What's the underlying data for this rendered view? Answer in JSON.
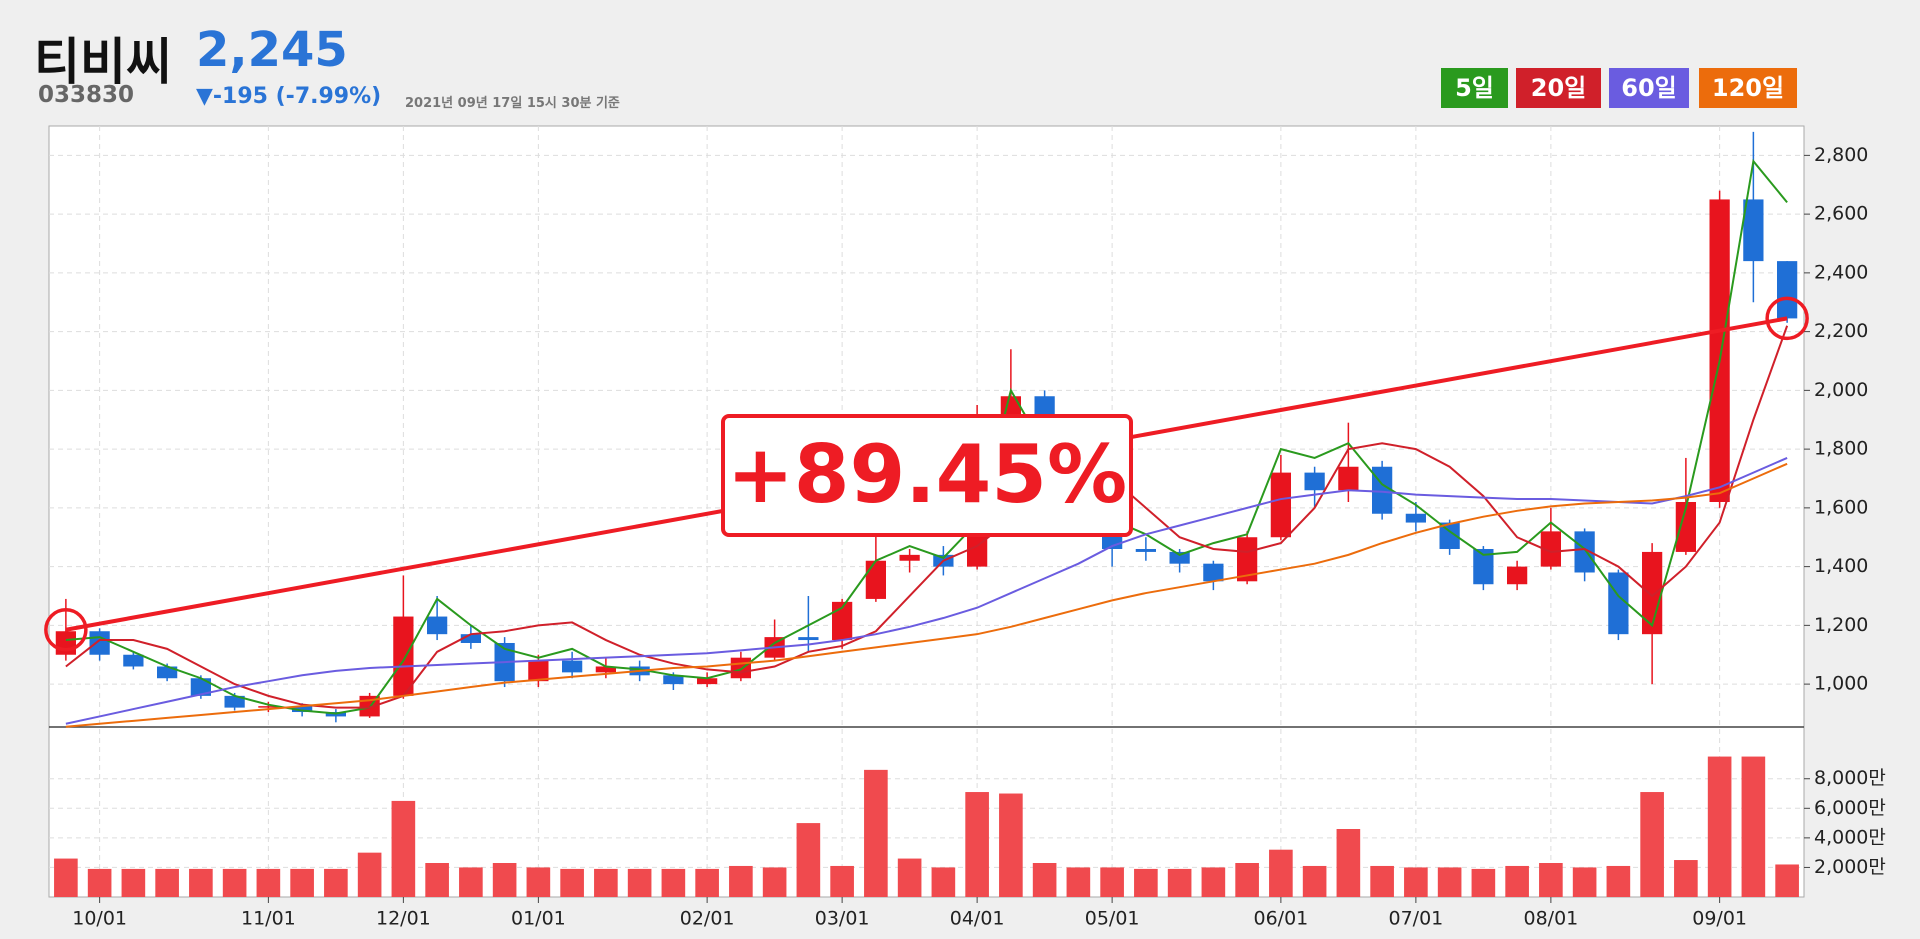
{
  "header": {
    "name": "티비씨",
    "price": "2,245",
    "code": "033830",
    "change": "▼-195 (-7.99%)",
    "timestamp": "2021년 09년 17일 15시 30분 기준"
  },
  "chart_data": {
    "type": "candlestick",
    "up_color": "#e8141e",
    "down_color": "#1f6fd6",
    "categories": [
      null,
      "10/01",
      null,
      null,
      null,
      null,
      "11/01",
      null,
      null,
      null,
      "12/01",
      null,
      null,
      null,
      "01/01",
      null,
      null,
      null,
      null,
      "02/01",
      null,
      null,
      null,
      "03/01",
      null,
      null,
      null,
      "04/01",
      null,
      null,
      null,
      "05/01",
      null,
      null,
      null,
      null,
      "06/01",
      null,
      null,
      null,
      "07/01",
      null,
      null,
      null,
      "08/01",
      null,
      null,
      null,
      null,
      "09/01",
      null,
      null
    ],
    "open": [
      1100,
      1180,
      1100,
      1060,
      1020,
      960,
      920,
      925,
      905,
      890,
      960,
      1230,
      1170,
      1140,
      1010,
      1080,
      1040,
      1060,
      1030,
      1000,
      1020,
      1090,
      1160,
      1150,
      1290,
      1420,
      1440,
      1400,
      1560,
      1980,
      1720,
      1600,
      1460,
      1450,
      1410,
      1350,
      1500,
      1720,
      1660,
      1740,
      1580,
      1550,
      1460,
      1340,
      1400,
      1520,
      1380,
      1170,
      1450,
      1620,
      2650,
      2440
    ],
    "high": [
      1290,
      1190,
      1110,
      1070,
      1030,
      970,
      940,
      935,
      915,
      970,
      1370,
      1300,
      1200,
      1160,
      1100,
      1110,
      1090,
      1080,
      1040,
      1040,
      1110,
      1220,
      1300,
      1290,
      1620,
      1460,
      1470,
      1950,
      2140,
      2000,
      1740,
      1620,
      1500,
      1460,
      1420,
      1520,
      1780,
      1740,
      1890,
      1760,
      1620,
      1560,
      1470,
      1420,
      1600,
      1530,
      1390,
      1480,
      1770,
      2680,
      2880,
      2440
    ],
    "low": [
      1080,
      1080,
      1050,
      1010,
      950,
      910,
      905,
      890,
      870,
      885,
      950,
      1150,
      1120,
      990,
      990,
      1020,
      1020,
      1010,
      980,
      990,
      1010,
      1080,
      1110,
      1120,
      1280,
      1380,
      1370,
      1390,
      1540,
      1700,
      1580,
      1400,
      1420,
      1380,
      1320,
      1340,
      1490,
      1600,
      1620,
      1560,
      1520,
      1440,
      1320,
      1320,
      1390,
      1350,
      1150,
      1000,
      1440,
      1600,
      2300,
      2230
    ],
    "close": [
      1180,
      1100,
      1060,
      1020,
      960,
      920,
      925,
      905,
      890,
      960,
      1230,
      1170,
      1140,
      1010,
      1080,
      1040,
      1060,
      1030,
      1000,
      1020,
      1090,
      1160,
      1150,
      1280,
      1420,
      1440,
      1400,
      1560,
      1980,
      1720,
      1600,
      1460,
      1450,
      1410,
      1350,
      1500,
      1720,
      1660,
      1740,
      1580,
      1550,
      1460,
      1340,
      1400,
      1520,
      1380,
      1170,
      1450,
      1620,
      2650,
      2440,
      2245
    ],
    "series": [
      {
        "name": "5일",
        "color": "#2a9a1e",
        "values": [
          1150,
          1160,
          1110,
          1060,
          1020,
          960,
          930,
          910,
          900,
          920,
          1080,
          1290,
          1200,
          1120,
          1090,
          1120,
          1060,
          1050,
          1030,
          1020,
          1050,
          1140,
          1200,
          1260,
          1420,
          1470,
          1430,
          1550,
          2000,
          1800,
          1660,
          1560,
          1510,
          1440,
          1480,
          1510,
          1800,
          1770,
          1820,
          1680,
          1610,
          1520,
          1440,
          1450,
          1550,
          1460,
          1300,
          1200,
          1600,
          2100,
          2780,
          2640
        ]
      },
      {
        "name": "20일",
        "color": "#d0202a",
        "values": [
          1060,
          1150,
          1150,
          1120,
          1060,
          1000,
          960,
          930,
          920,
          920,
          960,
          1110,
          1170,
          1180,
          1200,
          1210,
          1150,
          1100,
          1070,
          1050,
          1040,
          1060,
          1110,
          1130,
          1180,
          1300,
          1420,
          1470,
          1560,
          1800,
          1800,
          1700,
          1600,
          1500,
          1460,
          1450,
          1480,
          1600,
          1800,
          1820,
          1800,
          1740,
          1640,
          1500,
          1450,
          1460,
          1400,
          1300,
          1400,
          1550,
          1900,
          2220
        ]
      },
      {
        "name": "60일",
        "color": "#6a5ce0",
        "values": [
          865,
          890,
          915,
          940,
          965,
          990,
          1010,
          1030,
          1045,
          1055,
          1060,
          1065,
          1070,
          1075,
          1080,
          1085,
          1090,
          1095,
          1100,
          1105,
          1115,
          1125,
          1135,
          1150,
          1170,
          1195,
          1225,
          1260,
          1310,
          1360,
          1410,
          1470,
          1510,
          1540,
          1570,
          1600,
          1630,
          1645,
          1660,
          1655,
          1645,
          1640,
          1635,
          1630,
          1630,
          1625,
          1620,
          1615,
          1640,
          1670,
          1720,
          1770
        ]
      },
      {
        "name": "120일",
        "color": "#ec6c0c",
        "values": [
          855,
          865,
          875,
          885,
          895,
          905,
          915,
          925,
          935,
          945,
          960,
          975,
          990,
          1005,
          1015,
          1025,
          1035,
          1045,
          1055,
          1060,
          1070,
          1080,
          1095,
          1110,
          1125,
          1140,
          1155,
          1170,
          1195,
          1225,
          1255,
          1285,
          1310,
          1330,
          1350,
          1370,
          1390,
          1410,
          1440,
          1480,
          1515,
          1545,
          1570,
          1590,
          1605,
          1615,
          1620,
          1625,
          1635,
          1650,
          1700,
          1750
        ]
      }
    ],
    "ylim": [
      854,
      2900
    ],
    "yticks": [
      {
        "value": 1000,
        "label": "1,000"
      },
      {
        "value": 1200,
        "label": "1,200"
      },
      {
        "value": 1400,
        "label": "1,400"
      },
      {
        "value": 1600,
        "label": "1,600"
      },
      {
        "value": 1800,
        "label": "1,800"
      },
      {
        "value": 2000,
        "label": "2,000"
      },
      {
        "value": 2200,
        "label": "2,200"
      },
      {
        "value": 2400,
        "label": "2,400"
      },
      {
        "value": 2600,
        "label": "2,600"
      },
      {
        "value": 2800,
        "label": "2,800"
      }
    ],
    "grid": true,
    "volume": {
      "color": "#f04a4e",
      "ylim": [
        0,
        11500
      ],
      "values": [
        2600,
        1900,
        1900,
        1900,
        1900,
        1900,
        1900,
        1900,
        1900,
        3000,
        6500,
        2300,
        2000,
        2300,
        2000,
        1900,
        1900,
        1900,
        1900,
        1900,
        2100,
        2000,
        5000,
        2100,
        8600,
        2600,
        2000,
        7100,
        7000,
        2300,
        2000,
        2000,
        1900,
        1900,
        2000,
        2300,
        3200,
        2100,
        4600,
        2100,
        2000,
        2000,
        1900,
        2100,
        2300,
        2000,
        2100,
        7100,
        2500,
        9500,
        9500,
        2200
      ],
      "yticks": [
        {
          "value": 2000,
          "label": "2,000만"
        },
        {
          "value": 4000,
          "label": "4,000만"
        },
        {
          "value": 6000,
          "label": "6,000만"
        },
        {
          "value": 8000,
          "label": "8,000만"
        }
      ]
    },
    "annotation": {
      "text": "+89.45%",
      "start": 1185,
      "end": 2245
    }
  }
}
